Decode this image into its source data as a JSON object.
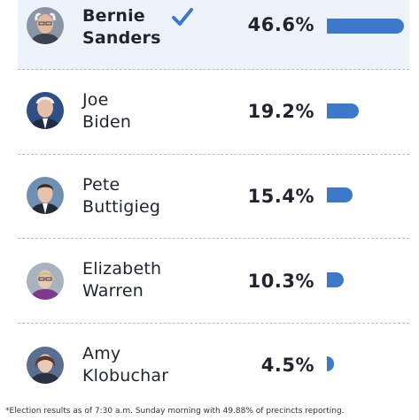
{
  "candidates": [
    {
      "first": "Bernie",
      "last": "Sanders",
      "percent": "46.6%",
      "value": 46.6,
      "winner": true
    },
    {
      "first": "Joe",
      "last": "Biden",
      "percent": "19.2%",
      "value": 19.2,
      "winner": false
    },
    {
      "first": "Pete",
      "last": "Buttigieg",
      "percent": "15.4%",
      "value": 15.4,
      "winner": false
    },
    {
      "first": "Elizabeth",
      "last": "Warren",
      "percent": "10.3%",
      "value": 10.3,
      "winner": false
    },
    {
      "first": "Amy",
      "last": "Klobuchar",
      "percent": "4.5%",
      "value": 4.5,
      "winner": false
    }
  ],
  "winner_icon": "checkmark-icon",
  "colors": {
    "bar": "#3d78c9",
    "winner_background": "#eef2fa",
    "text": "#1f2430"
  },
  "footnote": "*Election results as of 7:30 a.m. Sunday morning with 49.88% of precincts reporting."
}
